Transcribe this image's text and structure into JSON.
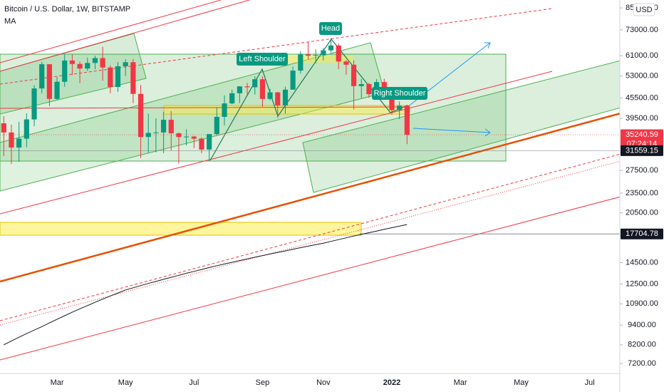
{
  "chart_data": {
    "type": "candlestick",
    "title": "Bitcoin / U.S. Dollar, 1W, BITSTAMP",
    "currency": "USD",
    "log_scale": true,
    "ylim": [
      6720,
      89800
    ],
    "yticks": [
      {
        "value": 85000,
        "label": "85000.00"
      },
      {
        "value": 73000,
        "label": "73000.00"
      },
      {
        "value": 61000,
        "label": "61000.00"
      },
      {
        "value": 53000,
        "label": "53000.00"
      },
      {
        "value": 45500,
        "label": "45500.00"
      },
      {
        "value": 39500,
        "label": "39500.00"
      },
      {
        "value": 27500,
        "label": "27500.00"
      },
      {
        "value": 23500,
        "label": "23500.00"
      },
      {
        "value": 20500,
        "label": "20500.00"
      },
      {
        "value": 14500,
        "label": "14500.00"
      },
      {
        "value": 12500,
        "label": "12500.00"
      },
      {
        "value": 10900,
        "label": "10900.00"
      },
      {
        "value": 9400,
        "label": "9400.00"
      },
      {
        "value": 8200,
        "label": "8200.00"
      },
      {
        "value": 7200,
        "label": "7200.00"
      }
    ],
    "categories": [
      null,
      null,
      null,
      null,
      null,
      null,
      null,
      "Mar",
      null,
      null,
      null,
      null,
      null,
      null,
      null,
      null,
      "May",
      null,
      null,
      null,
      null,
      null,
      null,
      null,
      null,
      "Jul",
      null,
      null,
      null,
      null,
      null,
      null,
      null,
      null,
      "Sep",
      null,
      null,
      null,
      null,
      null,
      null,
      null,
      "Nov",
      null,
      null,
      null,
      null,
      null,
      null,
      null,
      null,
      "2022",
      null,
      null,
      null,
      null,
      null,
      null,
      null,
      null,
      "Mar",
      null,
      null,
      null,
      null,
      null,
      null,
      null,
      "May",
      null,
      null,
      null,
      null,
      null,
      null,
      null,
      null,
      "Jul",
      null,
      null,
      null,
      null
    ],
    "up_color": "#089981",
    "down_color": "#f23645",
    "open": [
      38150,
      35800,
      32250,
      34300,
      39200,
      48600,
      57500,
      45200,
      50900,
      59000,
      57600,
      55800,
      58000,
      60000,
      56200,
      49100,
      56700,
      58300,
      46800,
      34700,
      35700,
      35800,
      39100,
      35600,
      34700,
      34800,
      34300,
      31800,
      35400,
      39900,
      43800,
      47000,
      49300,
      49000,
      51800,
      45200,
      47300,
      43200,
      48200,
      55000,
      61500,
      61000,
      61300,
      63300,
      65500,
      58600,
      57300,
      49400,
      50100,
      46700,
      50800,
      46200,
      41800,
      43100,
      null,
      null,
      null,
      null,
      null,
      null,
      null,
      null,
      null,
      null,
      null,
      null,
      null,
      null,
      null,
      null,
      null,
      null,
      null,
      null,
      null,
      null,
      null,
      null,
      null,
      null,
      null,
      null
    ],
    "high": [
      40100,
      37800,
      38500,
      40900,
      49700,
      58400,
      57500,
      52600,
      61800,
      61500,
      58500,
      60200,
      61000,
      64900,
      57000,
      58400,
      59500,
      59600,
      49800,
      40800,
      39500,
      41300,
      41500,
      35800,
      36600,
      35000,
      34600,
      35400,
      42600,
      46300,
      48200,
      49400,
      50500,
      52900,
      52900,
      48500,
      47400,
      49200,
      56600,
      62900,
      67000,
      63700,
      64300,
      69000,
      66300,
      59200,
      59100,
      51900,
      50500,
      51900,
      52000,
      47500,
      44400,
      43400,
      null,
      null,
      null,
      null,
      null,
      null,
      null,
      null,
      null,
      null,
      null,
      null,
      null,
      null,
      null,
      null,
      null,
      null,
      null,
      null,
      null,
      null,
      null,
      null,
      null,
      null,
      null,
      null
    ],
    "low": [
      30400,
      28800,
      29200,
      32300,
      37400,
      47000,
      43000,
      44900,
      49200,
      53300,
      50400,
      54900,
      55500,
      51300,
      47000,
      47500,
      53000,
      43900,
      30000,
      31100,
      31200,
      31000,
      31600,
      28800,
      32700,
      32100,
      31000,
      29300,
      35200,
      37600,
      43600,
      43900,
      46500,
      46600,
      42800,
      44700,
      39600,
      40800,
      48200,
      53900,
      59500,
      58000,
      59000,
      62300,
      55600,
      53500,
      42000,
      45500,
      45500,
      45600,
      45700,
      40500,
      39300,
      33000,
      null,
      null,
      null,
      null,
      null,
      null,
      null,
      null,
      null,
      null,
      null,
      null,
      null,
      null,
      null,
      null,
      null,
      null,
      null,
      null,
      null,
      null,
      null,
      null,
      null,
      null,
      null,
      null
    ],
    "close": [
      35800,
      32250,
      34300,
      39200,
      48600,
      57500,
      45200,
      50900,
      59000,
      57600,
      55800,
      58000,
      60000,
      56200,
      49100,
      56700,
      58300,
      46800,
      34700,
      35700,
      35800,
      39100,
      35600,
      34700,
      34800,
      34300,
      31800,
      35400,
      39900,
      43800,
      47000,
      49300,
      49000,
      51800,
      45200,
      47300,
      43200,
      48200,
      55000,
      61500,
      61000,
      61300,
      63300,
      65500,
      58600,
      57300,
      49400,
      50100,
      46700,
      50800,
      46200,
      41800,
      43100,
      35240.59,
      null,
      null,
      null,
      null,
      null,
      null,
      null,
      null,
      null,
      null,
      null,
      null,
      null,
      null,
      null,
      null,
      null,
      null,
      null,
      null,
      null,
      null,
      null,
      null,
      null,
      null,
      null,
      null
    ],
    "series": [
      {
        "name": "MA",
        "color": "#131722",
        "values": [
          8200,
          8420,
          8640,
          8860,
          9080,
          9300,
          9545,
          9790,
          10035,
          10280,
          10525,
          10770,
          11015,
          11260,
          11505,
          11750,
          12000,
          12180,
          12370,
          12550,
          12730,
          12920,
          13100,
          13280,
          13470,
          13650,
          13830,
          14020,
          14200,
          14370,
          14540,
          14710,
          14890,
          15060,
          15230,
          15400,
          15570,
          15740,
          15910,
          16090,
          16260,
          16430,
          16600,
          16810,
          17020,
          17230,
          17440,
          17650,
          17850,
          18060,
          18270,
          18480,
          18690,
          18900,
          null,
          null,
          null,
          null,
          null,
          null,
          null,
          null,
          null,
          null,
          null,
          null,
          null,
          null,
          null,
          null,
          null,
          null,
          null,
          null,
          null,
          null,
          null,
          null,
          null,
          null,
          null,
          null
        ]
      }
    ],
    "price_tags": [
      {
        "value": 35240.59,
        "countdown": "07:24:14",
        "color": "#f23645"
      },
      {
        "value": 31559.15,
        "color": "#131722"
      },
      {
        "value": 17704.78,
        "color": "#131722"
      }
    ],
    "annotations": [
      "Head",
      "Left Shoulder",
      "Right Shoulder"
    ]
  }
}
